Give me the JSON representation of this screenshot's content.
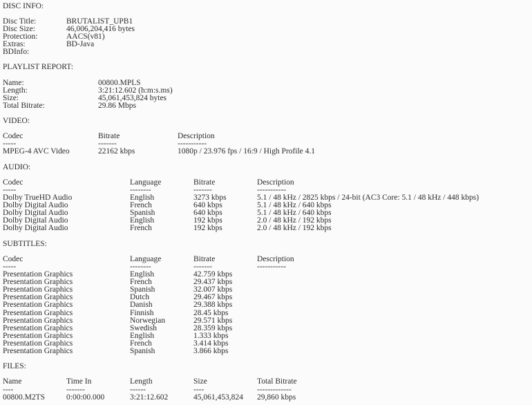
{
  "disc_info": {
    "heading": "DISC INFO:",
    "fields": [
      {
        "label": "Disc Title:",
        "value": "BRUTALIST_UPB1"
      },
      {
        "label": "Disc Size:",
        "value": "46,006,204,416 bytes"
      },
      {
        "label": "Protection:",
        "value": "AACS(v81)"
      },
      {
        "label": "Extras:",
        "value": "BD-Java"
      },
      {
        "label": "BDInfo:",
        "value": ""
      }
    ]
  },
  "playlist_report": {
    "heading": "PLAYLIST REPORT:",
    "fields": [
      {
        "label": "Name:",
        "value": "00800.MPLS"
      },
      {
        "label": "Length:",
        "value": "3:21:12.602 (h:m:s.ms)"
      },
      {
        "label": "Size:",
        "value": "45,061,453,824 bytes"
      },
      {
        "label": "Total Bitrate:",
        "value": "29.86 Mbps"
      }
    ]
  },
  "video": {
    "heading": "VIDEO:",
    "columns": [
      "Codec",
      "Bitrate",
      "Description"
    ],
    "dashes": [
      "-----",
      "-------",
      "-----------"
    ],
    "rows": [
      [
        "MPEG-4 AVC Video",
        "22162 kbps",
        "1080p / 23.976 fps / 16:9 / High Profile 4.1"
      ]
    ]
  },
  "audio": {
    "heading": "AUDIO:",
    "columns": [
      "Codec",
      "Language",
      "Bitrate",
      "Description"
    ],
    "dashes": [
      "-----",
      "--------",
      "-------",
      "-----------"
    ],
    "rows": [
      [
        "Dolby TrueHD Audio",
        "English",
        "3273 kbps",
        "5.1 / 48 kHz / 2825 kbps / 24-bit (AC3 Core: 5.1 / 48 kHz / 448 kbps)"
      ],
      [
        "Dolby Digital Audio",
        "French",
        "640 kbps",
        "5.1 / 48 kHz / 640 kbps"
      ],
      [
        "Dolby Digital Audio",
        "Spanish",
        "640 kbps",
        "5.1 / 48 kHz / 640 kbps"
      ],
      [
        "Dolby Digital Audio",
        "English",
        "192 kbps",
        "2.0 / 48 kHz / 192 kbps"
      ],
      [
        "Dolby Digital Audio",
        "French",
        "192 kbps",
        "2.0 / 48 kHz / 192 kbps"
      ]
    ]
  },
  "subtitles": {
    "heading": "SUBTITLES:",
    "columns": [
      "Codec",
      "Language",
      "Bitrate",
      "Description"
    ],
    "dashes": [
      "-----",
      "--------",
      "-------",
      "-----------"
    ],
    "rows": [
      [
        "Presentation Graphics",
        "English",
        "42.759 kbps",
        ""
      ],
      [
        "Presentation Graphics",
        "French",
        "29.437 kbps",
        ""
      ],
      [
        "Presentation Graphics",
        "Spanish",
        "32.007 kbps",
        ""
      ],
      [
        "Presentation Graphics",
        "Dutch",
        "29.467 kbps",
        ""
      ],
      [
        "Presentation Graphics",
        "Danish",
        "29.388 kbps",
        ""
      ],
      [
        "Presentation Graphics",
        "Finnish",
        "28.45 kbps",
        ""
      ],
      [
        "Presentation Graphics",
        "Norwegian",
        "29.571 kbps",
        ""
      ],
      [
        "Presentation Graphics",
        "Swedish",
        "28.359 kbps",
        ""
      ],
      [
        "Presentation Graphics",
        "English",
        "1.333 kbps",
        ""
      ],
      [
        "Presentation Graphics",
        "French",
        "3.414 kbps",
        ""
      ],
      [
        "Presentation Graphics",
        "Spanish",
        "3.866 kbps",
        ""
      ]
    ]
  },
  "files": {
    "heading": "FILES:",
    "columns": [
      "Name",
      "Time In",
      "Length",
      "Size",
      "Total Bitrate"
    ],
    "dashes": [
      "----",
      "-------",
      "------",
      "----",
      "-------------"
    ],
    "rows": [
      [
        "00800.M2TS",
        "0:00:00.000",
        "3:21:12.602",
        "45,061,453,824",
        "29,860 kbps"
      ]
    ]
  }
}
